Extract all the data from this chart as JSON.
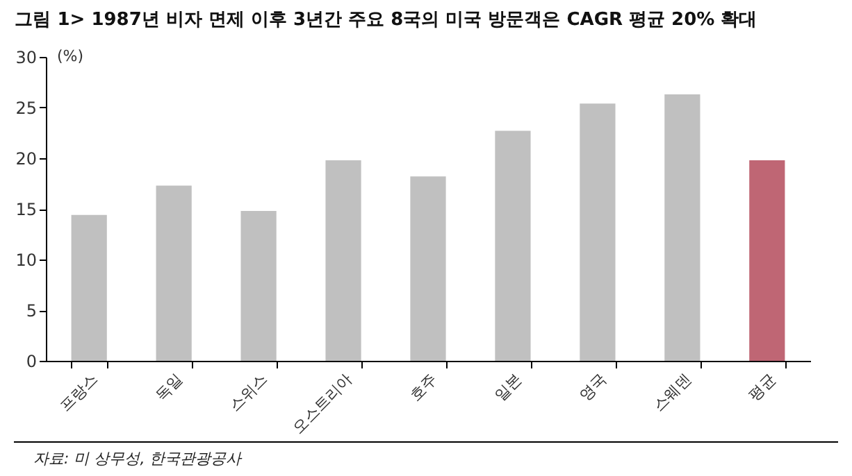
{
  "chart_data": {
    "type": "bar",
    "title": "그림 1> 1987년 비자 면제 이후 3년간 주요 8국의 미국 방문객은 CAGR 평균 20% 확대",
    "ylabel": "(%)",
    "categories": [
      "프랑스",
      "독일",
      "스위스",
      "오스트리아",
      "호주",
      "일본",
      "영국",
      "스웨덴",
      "평균"
    ],
    "values": [
      14.4,
      17.3,
      14.8,
      19.8,
      18.2,
      22.7,
      25.4,
      26.3,
      19.8
    ],
    "colors": [
      "#c0c0c0",
      "#c0c0c0",
      "#c0c0c0",
      "#c0c0c0",
      "#c0c0c0",
      "#c0c0c0",
      "#c0c0c0",
      "#c0c0c0",
      "#bf6674"
    ],
    "ylim": [
      0,
      30
    ],
    "yticks": [
      0,
      5,
      10,
      15,
      20,
      25,
      30
    ],
    "grid": false,
    "annotations": [
      "자료: 미 상무성, 한국관광공사"
    ]
  }
}
